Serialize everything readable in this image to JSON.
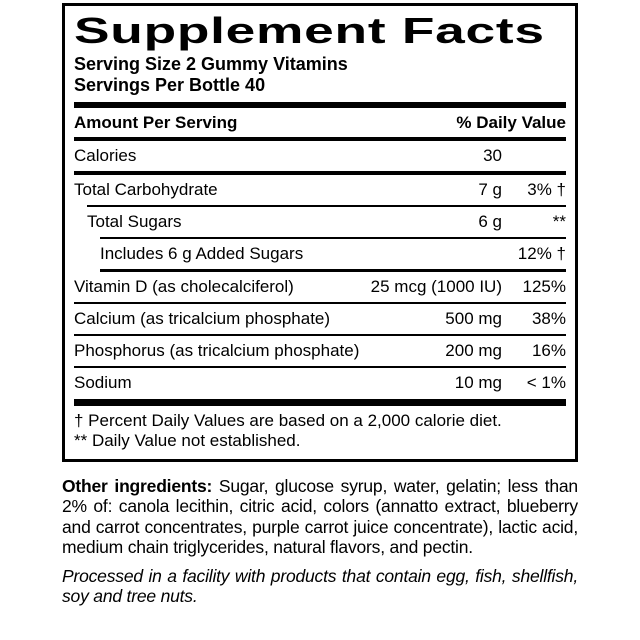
{
  "label": {
    "title": "Supplement Facts",
    "serving_size": "Serving Size 2 Gummy Vitamins",
    "servings_per_bottle": "Servings Per Bottle 40",
    "header": {
      "amount": "Amount Per Serving",
      "daily_value": "% Daily Value"
    },
    "rows": [
      {
        "name": "Calories",
        "amount": "30",
        "pct": ""
      },
      {
        "name": "Total Carbohydrate",
        "amount": "7 g",
        "pct": "3% †"
      },
      {
        "name": "Total Sugars",
        "amount": "6 g",
        "pct": "**"
      },
      {
        "name": "Includes 6 g Added Sugars",
        "amount": "",
        "pct": "12% †"
      },
      {
        "name": "Vitamin D (as cholecalciferol)",
        "amount": "25 mcg (1000 IU)",
        "pct": "125%"
      },
      {
        "name": "Calcium (as tricalcium phosphate)",
        "amount": "500 mg",
        "pct": "38%"
      },
      {
        "name": "Phosphorus (as tricalcium phosphate)",
        "amount": "200 mg",
        "pct": "16%"
      },
      {
        "name": "Sodium",
        "amount": "10 mg",
        "pct": "< 1%"
      }
    ],
    "footnotes": [
      "† Percent Daily Values are based on a 2,000 calorie diet.",
      "** Daily Value not established."
    ]
  },
  "ingredients": {
    "label": "Other ingredients:",
    "text": "Sugar, glucose syrup, water, gelatin; less than 2% of: canola lecithin, citric acid, colors (annatto extract, blueberry and carrot concentrates, purple carrot juice concentrate), lactic acid, medium chain triglycerides, natural flavors, and pectin."
  },
  "allergen": "Processed in a facility with products that contain egg, fish, shellfish, soy and tree nuts."
}
